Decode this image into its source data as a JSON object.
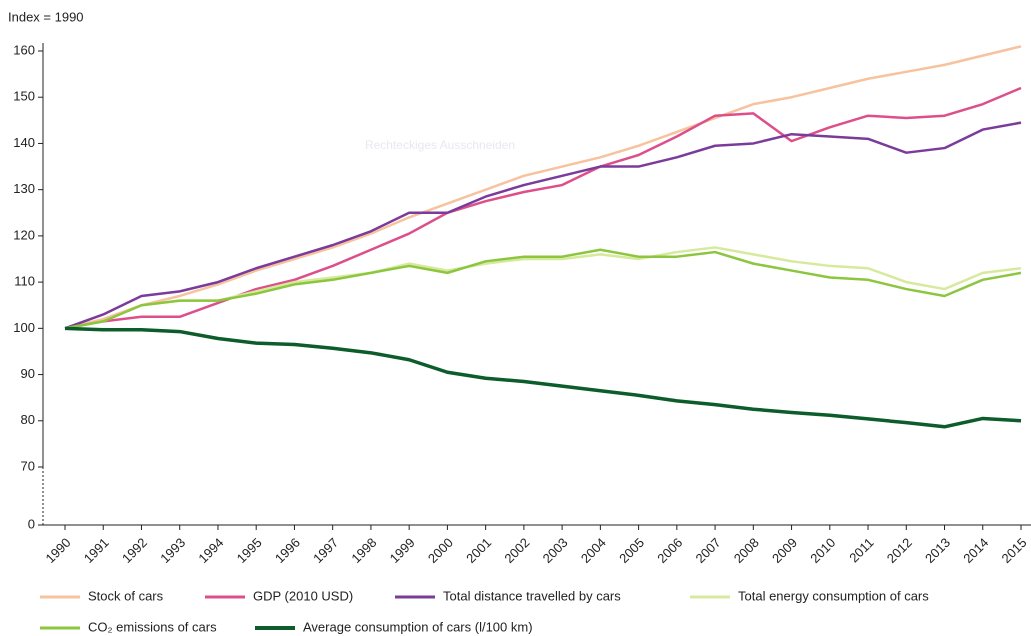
{
  "chart_data": {
    "type": "line",
    "ylabel": "Index = 1990",
    "annotation": "Rechteckiges Ausschneiden",
    "x": [
      1990,
      1991,
      1992,
      1993,
      1994,
      1995,
      1996,
      1997,
      1998,
      1999,
      2000,
      2001,
      2002,
      2003,
      2004,
      2005,
      2006,
      2007,
      2008,
      2009,
      2010,
      2011,
      2012,
      2013,
      2014,
      2015
    ],
    "xlim": [
      1990,
      2015
    ],
    "ylim": [
      0,
      160
    ],
    "y_break": [
      0,
      70
    ],
    "yticks": [
      0,
      70,
      80,
      90,
      100,
      110,
      120,
      130,
      140,
      150,
      160
    ],
    "series": [
      {
        "name": "Stock of cars",
        "color": "#f7c29e",
        "values": [
          100,
          102,
          105,
          107,
          109.5,
          112.5,
          115,
          117.5,
          120.5,
          124,
          127,
          130,
          133,
          135,
          137,
          139.5,
          142.5,
          145.5,
          148.5,
          150,
          152,
          154,
          155.5,
          157,
          159,
          161
        ]
      },
      {
        "name": "GDP (2010 USD)",
        "color": "#dd4f8a",
        "values": [
          100,
          101.5,
          102.5,
          102.5,
          105.5,
          108.5,
          110.5,
          113.5,
          117,
          120.5,
          125,
          127.5,
          129.5,
          131,
          135,
          137.5,
          141.5,
          146,
          146.5,
          140.5,
          143.5,
          146,
          145.5,
          146,
          148.5,
          152
        ]
      },
      {
        "name": "Total distance travelled by cars",
        "color": "#7b3b9b",
        "values": [
          100,
          103,
          107,
          108,
          110,
          113,
          115.5,
          118,
          121,
          125,
          125,
          128.5,
          131,
          133,
          135,
          135,
          137,
          139.5,
          140,
          142,
          141.5,
          141,
          138,
          139,
          143,
          144.5
        ]
      },
      {
        "name": "Total energy consumption of cars",
        "color": "#d6e99c",
        "values": [
          100,
          101.5,
          105,
          106,
          106,
          108,
          110,
          111,
          112,
          114,
          112.5,
          114,
          115,
          115,
          116,
          115,
          116.5,
          117.5,
          116,
          114.5,
          113.5,
          113,
          110,
          108.5,
          112,
          113
        ]
      },
      {
        "name": "CO₂ emissions of cars",
        "color": "#8cc63f",
        "values": [
          100,
          101.5,
          105,
          106,
          106,
          107.5,
          109.5,
          110.5,
          112,
          113.5,
          112,
          114.5,
          115.5,
          115.5,
          117,
          115.5,
          115.5,
          116.5,
          114,
          112.5,
          111,
          110.5,
          108.5,
          107,
          110.5,
          112
        ]
      },
      {
        "name": "Average consumption of cars (l/100 km)",
        "color": "#0d5c2b",
        "values": [
          100,
          99.7,
          99.7,
          99.3,
          97.8,
          96.8,
          96.5,
          95.7,
          94.7,
          93.2,
          90.5,
          89.2,
          88.5,
          87.5,
          86.5,
          85.5,
          84.3,
          83.5,
          82.5,
          81.8,
          81.2,
          80.4,
          79.6,
          78.7,
          80.5,
          80
        ]
      }
    ]
  }
}
